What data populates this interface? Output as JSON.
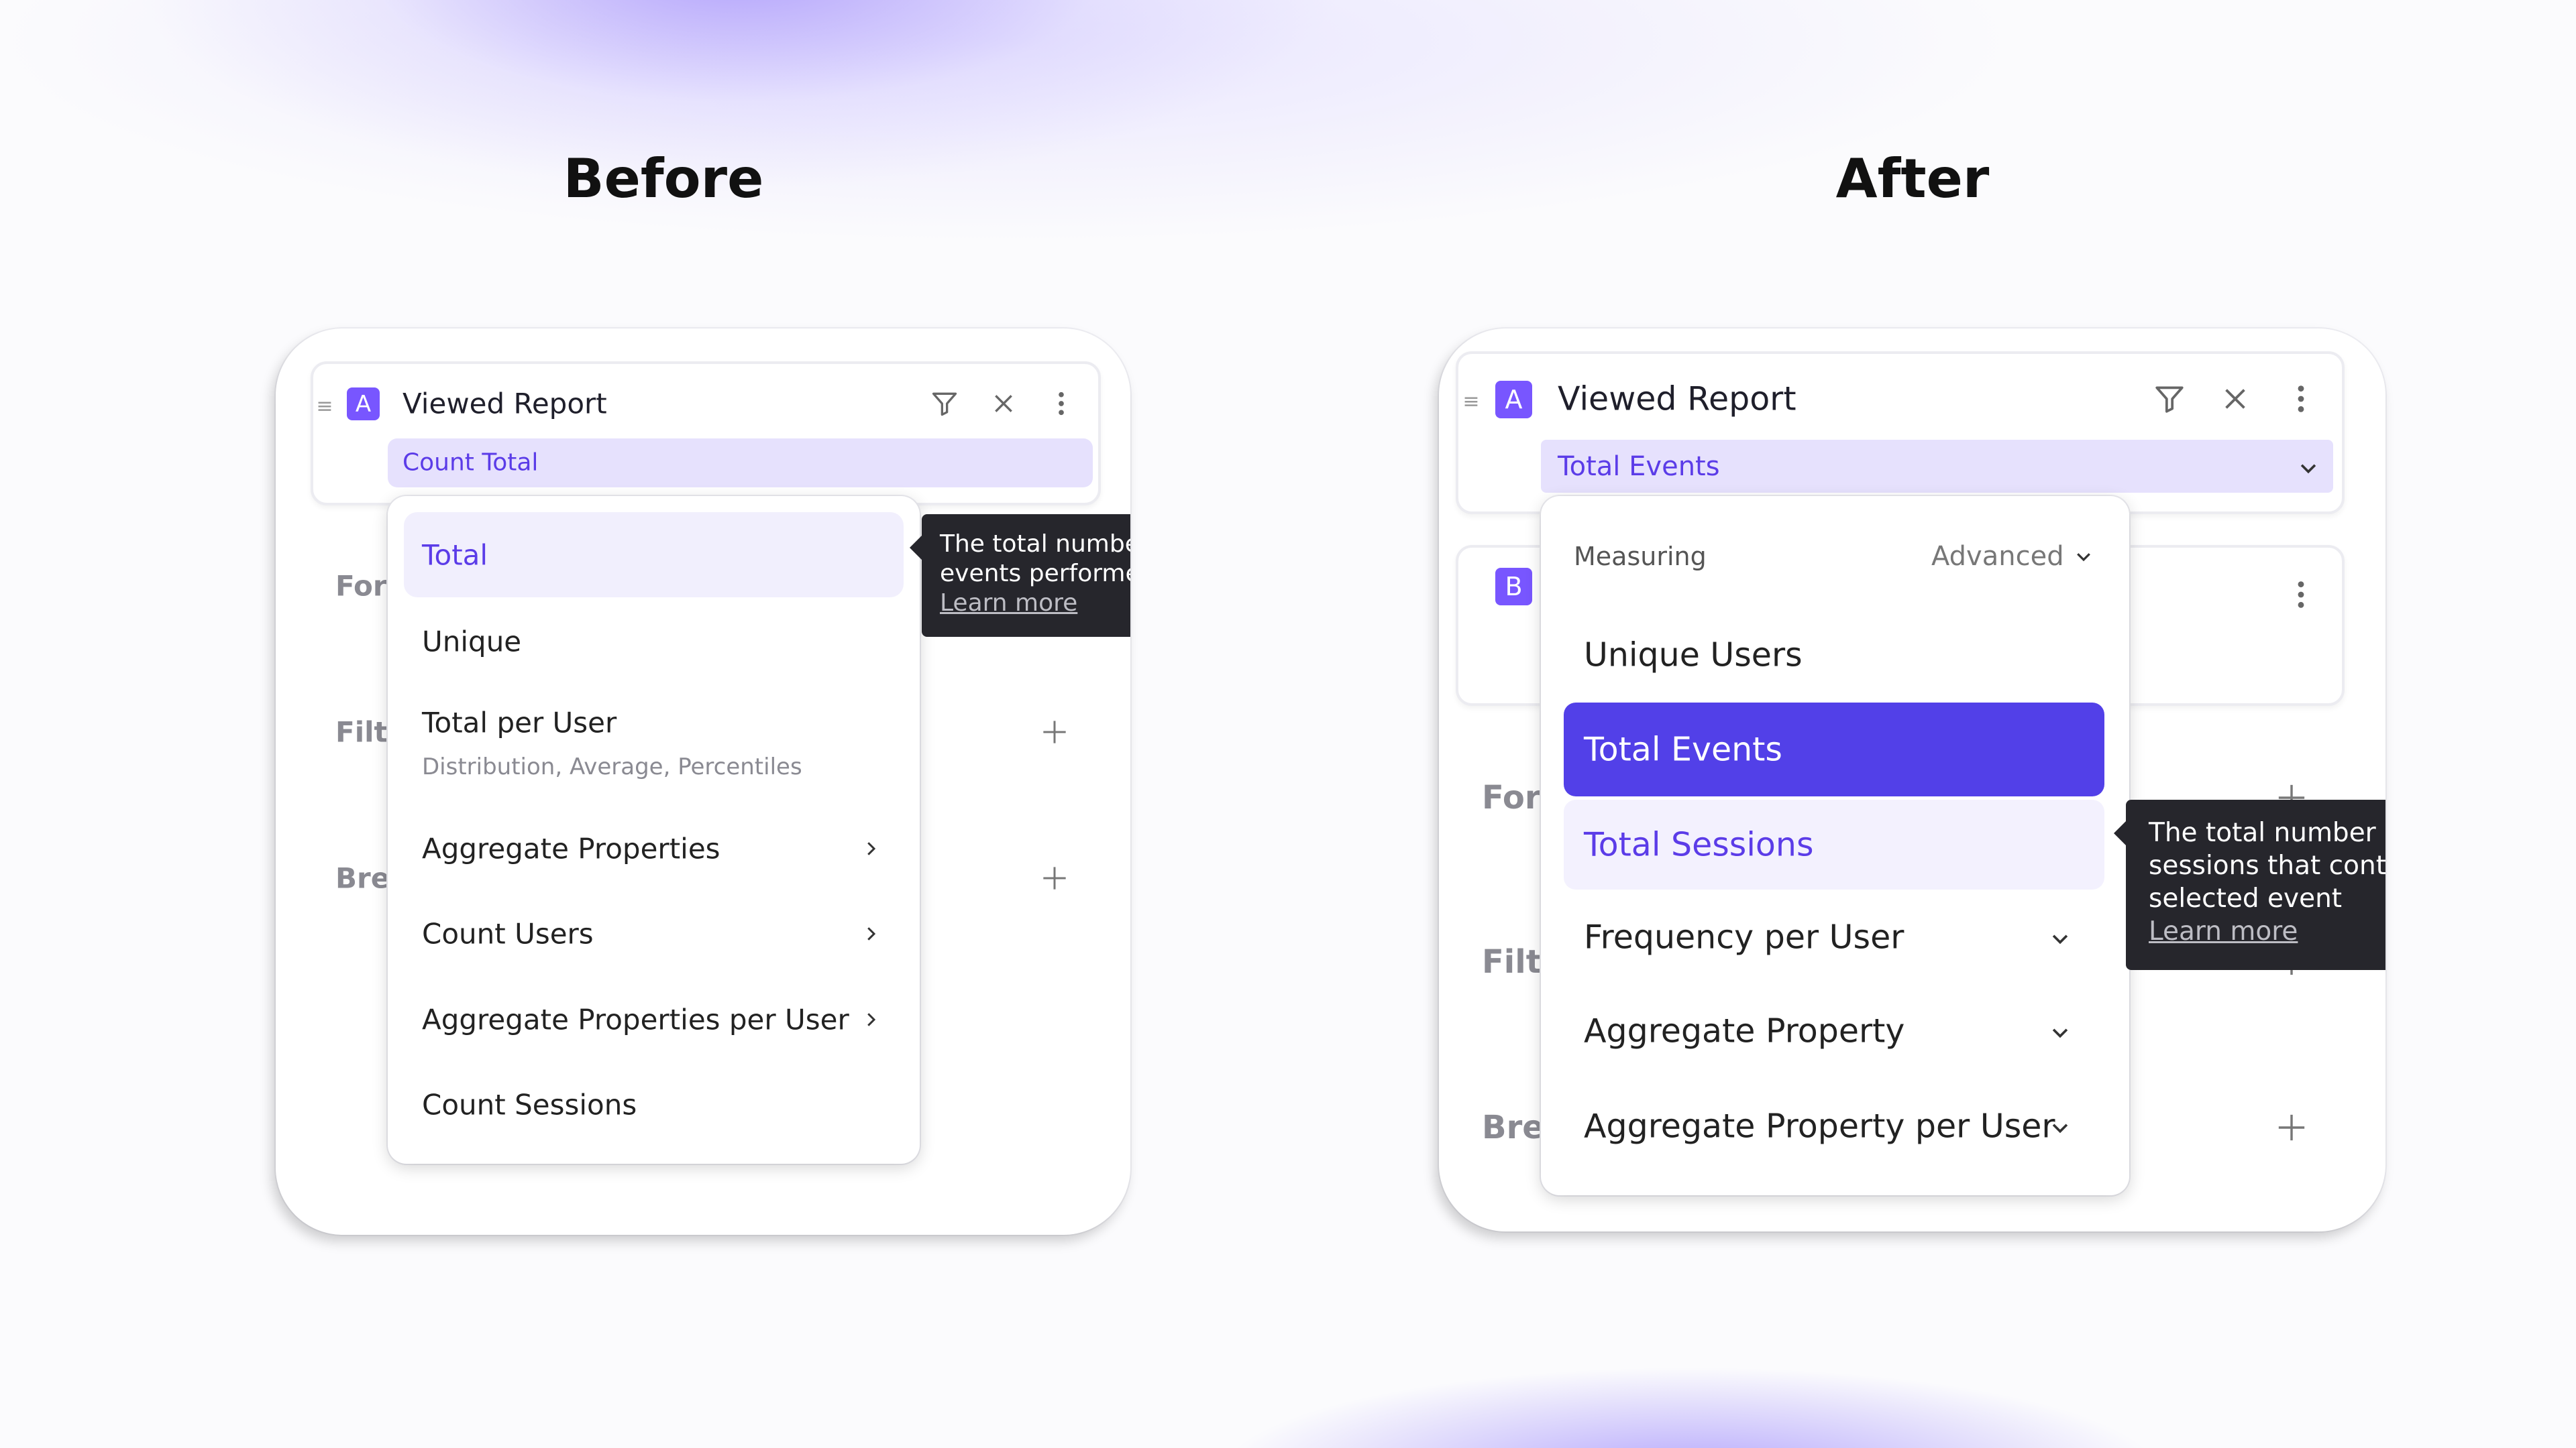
{
  "before": {
    "heading": "Before",
    "metric": {
      "badge": "A",
      "event": "Viewed Report",
      "measure": "Count Total"
    },
    "background_labels": [
      "Forr",
      "Filte",
      "Brea"
    ],
    "menu": {
      "items": [
        {
          "label": "Total",
          "selected": true
        },
        {
          "label": "Unique"
        },
        {
          "label": "Total per User",
          "sublabel": "Distribution, Average, Percentiles"
        },
        {
          "label": "Aggregate Properties",
          "submenu": true
        },
        {
          "label": "Count Users",
          "submenu": true
        },
        {
          "label": "Aggregate Properties per User",
          "submenu": true
        },
        {
          "label": "Count Sessions"
        }
      ]
    },
    "tooltip": {
      "lines": [
        "The total number",
        "events performed"
      ],
      "link": "Learn more"
    }
  },
  "after": {
    "heading": "After",
    "metric": {
      "badge": "A",
      "event": "Viewed Report",
      "measure": "Total Events"
    },
    "metric_b": {
      "badge": "B"
    },
    "background_labels": [
      "Forr",
      "Filte",
      "Brea"
    ],
    "menu": {
      "header": "Measuring",
      "advanced": "Advanced",
      "items": [
        {
          "label": "Unique Users"
        },
        {
          "label": "Total Events",
          "selected": true
        },
        {
          "label": "Total Sessions",
          "hovered": true
        },
        {
          "label": "Frequency per User",
          "expandable": true
        },
        {
          "label": "Aggregate Property",
          "expandable": true
        },
        {
          "label": "Aggregate Property per User",
          "expandable": true
        }
      ]
    },
    "tooltip": {
      "lines": [
        "The total number o",
        "sessions that conta",
        "selected event"
      ],
      "link": "Learn more"
    }
  },
  "colors": {
    "accent": "#5240e8",
    "badge": "#7856ff",
    "chip_bg": "#e6e1fd",
    "hover_bg": "#f3f1fe",
    "tooltip_bg": "#26262c"
  }
}
